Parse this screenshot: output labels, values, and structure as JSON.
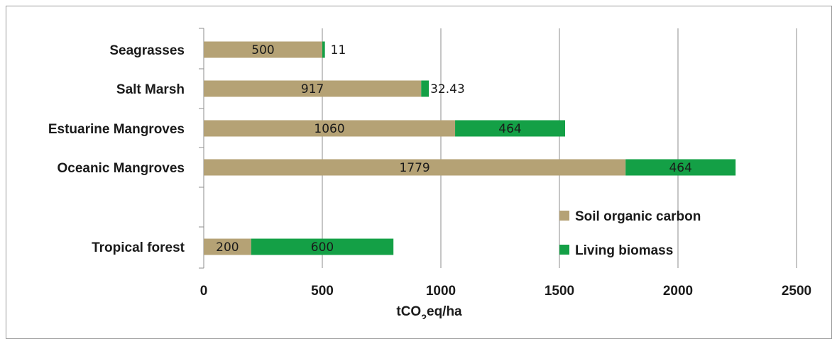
{
  "chart_data": {
    "type": "bar",
    "orientation": "horizontal",
    "stacked": true,
    "categories": [
      "Seagrasses",
      "Salt Marsh",
      "Estuarine Mangroves",
      "Oceanic Mangroves",
      "Tropical forest"
    ],
    "series": [
      {
        "name": "Soil organic carbon",
        "color": "#b5a275",
        "values": [
          500,
          917,
          1060,
          1779,
          200
        ],
        "labels": [
          "500",
          "917",
          "1060",
          "1779",
          "200"
        ]
      },
      {
        "name": "Living biomass",
        "color": "#14a046",
        "values": [
          11,
          32.43,
          464,
          464,
          600
        ],
        "labels": [
          "11",
          "32.43",
          "464",
          "464",
          "600"
        ]
      }
    ],
    "xlim": [
      0,
      2500
    ],
    "xticks": [
      0,
      500,
      1000,
      1500,
      2000,
      2500
    ],
    "xtick_labels": [
      "0",
      "500",
      "1000",
      "1500",
      "2000",
      "2500"
    ],
    "xlabel": {
      "prefix": "tCO",
      "subscript": "2",
      "suffix": "eq/ha"
    },
    "grid": "vertical",
    "legend_position": "bottom-right"
  }
}
